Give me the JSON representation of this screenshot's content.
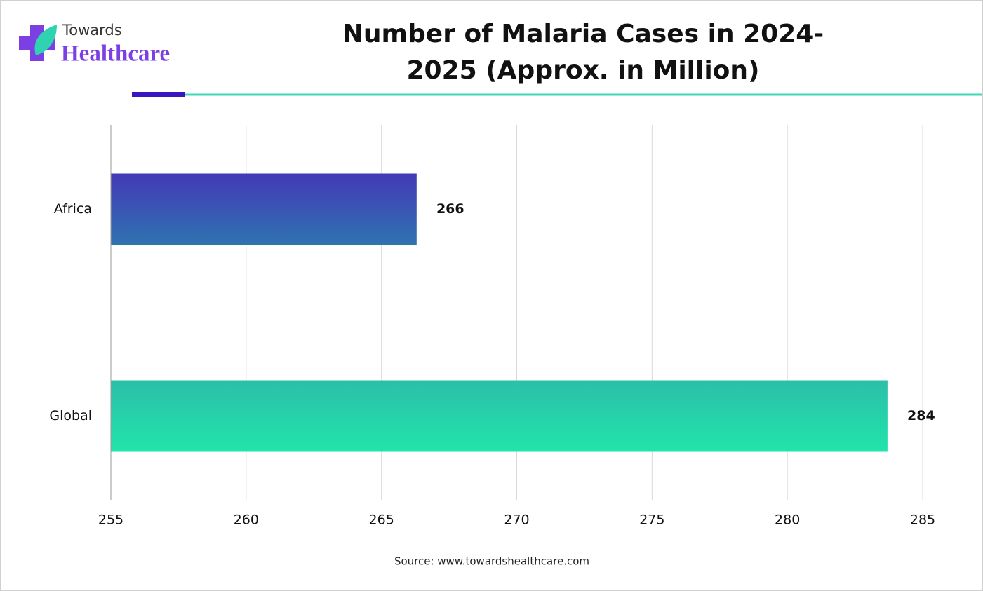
{
  "logo": {
    "line1": "Towards",
    "line2": "Healthcare"
  },
  "chart_data": {
    "type": "hbar",
    "title": "Number of Malaria Cases in 2024-2025 (Approx. in Million)",
    "categories": [
      "Africa",
      "Global"
    ],
    "values": [
      266.3,
      283.7
    ],
    "value_labels": [
      "266",
      "284"
    ],
    "gradients": [
      [
        "#4339b6",
        "#2f73b0"
      ],
      [
        "#2bbfa9",
        "#22e4aa"
      ]
    ],
    "xlim": [
      255,
      285
    ],
    "xticks": [
      255,
      260,
      265,
      270,
      275,
      280,
      285
    ],
    "grid": true,
    "source": "Source: www.towardshealthcare.com"
  }
}
